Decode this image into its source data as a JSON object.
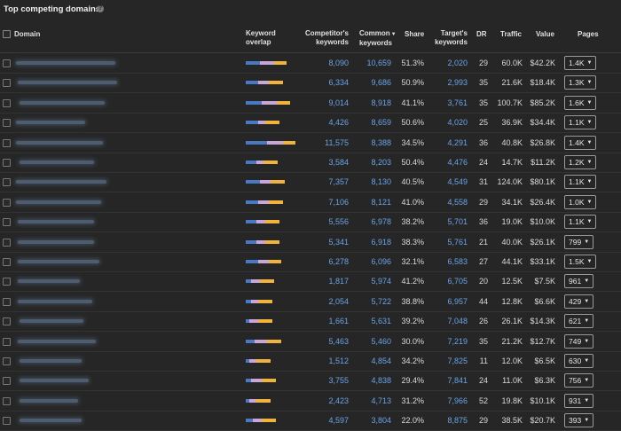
{
  "title": "Top competing domains",
  "columns": {
    "domain": "Domain",
    "overlap_1": "Keyword",
    "overlap_2": "overlap",
    "competitor_1": "Competitor's",
    "competitor_2": "keywords",
    "common_1": "Common",
    "common_2": "keywords",
    "share": "Share",
    "target_1": "Target's",
    "target_2": "keywords",
    "dr": "DR",
    "traffic": "Traffic",
    "value": "Value",
    "pages": "Pages"
  },
  "colors": {
    "overlap_common": "#4a78c2",
    "overlap_competitor": "#c8a6d8",
    "overlap_target": "#f0b43c",
    "link": "#6aa3e8"
  },
  "rows": [
    {
      "competitor": "8,090",
      "common": "10,659",
      "share": "51.3%",
      "target": "2,020",
      "dr": "29",
      "traffic": "60.0K",
      "value": "$42.2K",
      "pages": "1.4K"
    },
    {
      "competitor": "6,334",
      "common": "9,686",
      "share": "50.9%",
      "target": "2,993",
      "dr": "35",
      "traffic": "21.6K",
      "value": "$18.4K",
      "pages": "1.3K"
    },
    {
      "competitor": "9,014",
      "common": "8,918",
      "share": "41.1%",
      "target": "3,761",
      "dr": "35",
      "traffic": "100.7K",
      "value": "$85.2K",
      "pages": "1.6K"
    },
    {
      "competitor": "4,426",
      "common": "8,659",
      "share": "50.6%",
      "target": "4,020",
      "dr": "25",
      "traffic": "36.9K",
      "value": "$34.4K",
      "pages": "1.1K"
    },
    {
      "competitor": "11,575",
      "common": "8,388",
      "share": "34.5%",
      "target": "4,291",
      "dr": "36",
      "traffic": "40.8K",
      "value": "$26.8K",
      "pages": "1.4K"
    },
    {
      "competitor": "3,584",
      "common": "8,203",
      "share": "50.4%",
      "target": "4,476",
      "dr": "24",
      "traffic": "14.7K",
      "value": "$11.2K",
      "pages": "1.2K"
    },
    {
      "competitor": "7,357",
      "common": "8,130",
      "share": "40.5%",
      "target": "4,549",
      "dr": "31",
      "traffic": "124.0K",
      "value": "$80.1K",
      "pages": "1.1K"
    },
    {
      "competitor": "7,106",
      "common": "8,121",
      "share": "41.0%",
      "target": "4,558",
      "dr": "29",
      "traffic": "34.1K",
      "value": "$26.4K",
      "pages": "1.0K"
    },
    {
      "competitor": "5,556",
      "common": "6,978",
      "share": "38.2%",
      "target": "5,701",
      "dr": "36",
      "traffic": "19.0K",
      "value": "$10.0K",
      "pages": "1.1K"
    },
    {
      "competitor": "5,341",
      "common": "6,918",
      "share": "38.3%",
      "target": "5,761",
      "dr": "21",
      "traffic": "40.0K",
      "value": "$26.1K",
      "pages": "799"
    },
    {
      "competitor": "6,278",
      "common": "6,096",
      "share": "32.1%",
      "target": "6,583",
      "dr": "27",
      "traffic": "44.1K",
      "value": "$33.1K",
      "pages": "1.5K"
    },
    {
      "competitor": "1,817",
      "common": "5,974",
      "share": "41.2%",
      "target": "6,705",
      "dr": "20",
      "traffic": "12.5K",
      "value": "$7.5K",
      "pages": "961"
    },
    {
      "competitor": "2,054",
      "common": "5,722",
      "share": "38.8%",
      "target": "6,957",
      "dr": "44",
      "traffic": "12.8K",
      "value": "$6.6K",
      "pages": "429"
    },
    {
      "competitor": "1,661",
      "common": "5,631",
      "share": "39.2%",
      "target": "7,048",
      "dr": "26",
      "traffic": "26.1K",
      "value": "$14.3K",
      "pages": "621"
    },
    {
      "competitor": "5,463",
      "common": "5,460",
      "share": "30.0%",
      "target": "7,219",
      "dr": "35",
      "traffic": "21.2K",
      "value": "$12.7K",
      "pages": "749"
    },
    {
      "competitor": "1,512",
      "common": "4,854",
      "share": "34.2%",
      "target": "7,825",
      "dr": "11",
      "traffic": "12.0K",
      "value": "$6.5K",
      "pages": "630"
    },
    {
      "competitor": "3,755",
      "common": "4,838",
      "share": "29.4%",
      "target": "7,841",
      "dr": "24",
      "traffic": "11.0K",
      "value": "$6.3K",
      "pages": "756"
    },
    {
      "competitor": "2,423",
      "common": "4,713",
      "share": "31.2%",
      "target": "7,966",
      "dr": "52",
      "traffic": "19.8K",
      "value": "$10.1K",
      "pages": "931"
    },
    {
      "competitor": "4,597",
      "common": "3,804",
      "share": "22.0%",
      "target": "8,875",
      "dr": "29",
      "traffic": "38.5K",
      "value": "$20.7K",
      "pages": "393"
    }
  ]
}
